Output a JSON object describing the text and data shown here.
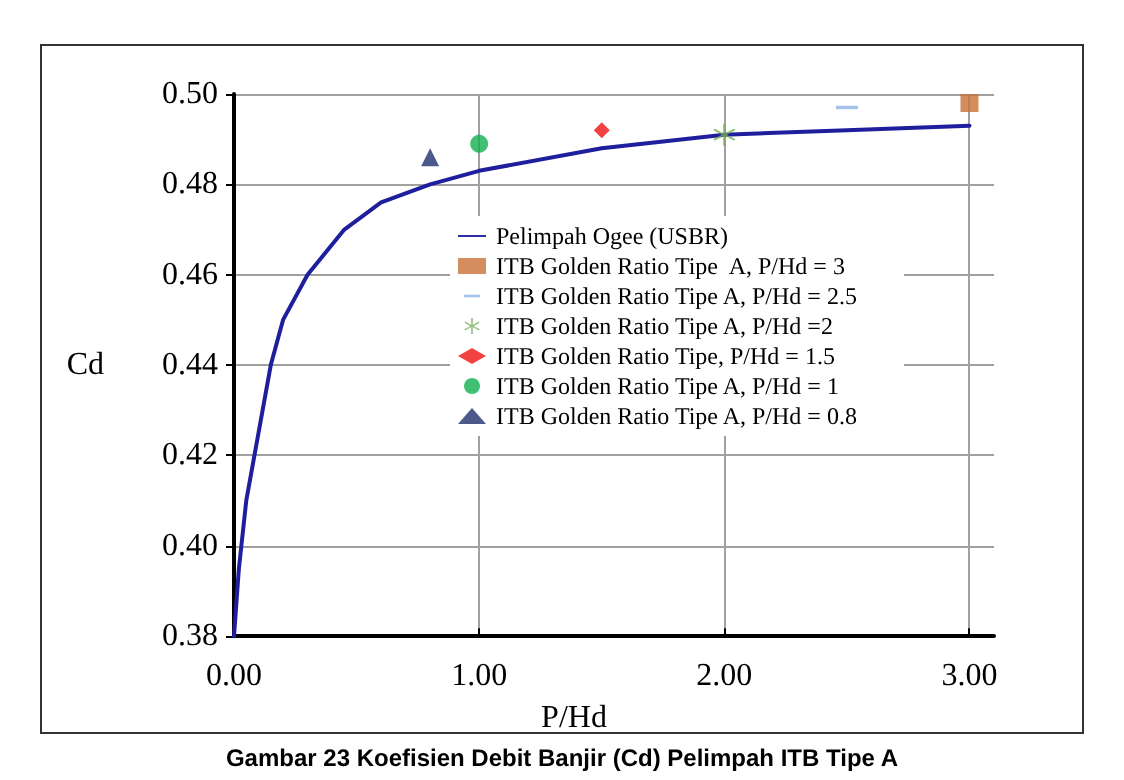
{
  "chart_data": {
    "type": "scatter",
    "xlabel": "P/Hd",
    "ylabel": "Cd",
    "xlim": [
      0,
      3.1
    ],
    "ylim": [
      0.38,
      0.5
    ],
    "xticks": [
      {
        "value": 0,
        "label": "0.00"
      },
      {
        "value": 1,
        "label": "1.00"
      },
      {
        "value": 2,
        "label": "2.00"
      },
      {
        "value": 3,
        "label": "3.00"
      }
    ],
    "yticks": [
      {
        "value": 0.38,
        "label": "0.38"
      },
      {
        "value": 0.4,
        "label": "0.40"
      },
      {
        "value": 0.42,
        "label": "0.42"
      },
      {
        "value": 0.44,
        "label": "0.44"
      },
      {
        "value": 0.46,
        "label": "0.46"
      },
      {
        "value": 0.48,
        "label": "0.48"
      },
      {
        "value": 0.5,
        "label": "0.50"
      }
    ],
    "grid": true,
    "legend": "right",
    "annotations": [
      "Gambar 23 Koefisien Debit Banjir (Cd) Pelimpah ITB Tipe A"
    ],
    "series": [
      {
        "name": "Pelimpah Ogee (USBR)",
        "type": "line",
        "marker": "none",
        "line_style": "solid",
        "color": "#1f1f9e",
        "x": [
          0,
          0.02,
          0.05,
          0.1,
          0.15,
          0.2,
          0.3,
          0.45,
          0.6,
          0.8,
          1.0,
          1.5,
          2.0,
          2.5,
          3.0
        ],
        "values": [
          0.38,
          0.395,
          0.41,
          0.425,
          0.44,
          0.45,
          0.46,
          0.47,
          0.476,
          0.48,
          0.483,
          0.488,
          0.491,
          0.492,
          0.493
        ]
      },
      {
        "name": "ITB Golden Ratio Tipe  A, P/Hd = 3",
        "marker": "square",
        "color": "#c87137",
        "x": [
          3
        ],
        "values": [
          0.498
        ]
      },
      {
        "name": "ITB Golden Ratio Tipe A, P/Hd = 2.5",
        "color": "#8fb4e3",
        "x": [
          2.5
        ],
        "values": [
          0.497
        ]
      },
      {
        "name": "ITB Golden Ratio Tipe A, P/Hd =2",
        "marker": "star",
        "color": "#77b05a",
        "x": [
          2
        ],
        "values": [
          0.491
        ]
      },
      {
        "name": "ITB Golden Ratio Tipe, P/Hd = 1.5",
        "marker": "diamond",
        "color": "#ee1111",
        "x": [
          1.5
        ],
        "values": [
          0.492
        ]
      },
      {
        "name": "ITB Golden Ratio Tipe A, P/Hd = 1",
        "marker": "circle",
        "color": "#11b050",
        "x": [
          1
        ],
        "values": [
          0.489
        ]
      },
      {
        "name": "ITB Golden Ratio Tipe A, P/Hd = 0.8",
        "marker": "triangle",
        "color": "#1f2f6e",
        "x": [
          0.8
        ],
        "values": [
          0.486
        ]
      }
    ]
  }
}
